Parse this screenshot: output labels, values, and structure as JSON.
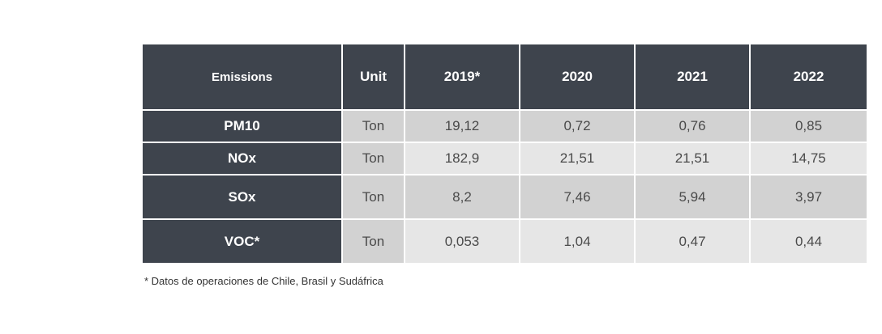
{
  "table": {
    "headers": [
      "Emissions",
      "Unit",
      "2019*",
      "2020",
      "2021",
      "2022"
    ],
    "rows": [
      {
        "label": "PM10",
        "unit": "Ton",
        "values": [
          "19,12",
          "0,72",
          "0,76",
          "0,85"
        ]
      },
      {
        "label": "NOx",
        "unit": "Ton",
        "values": [
          "182,9",
          "21,51",
          "21,51",
          "14,75"
        ]
      },
      {
        "label": "SOx",
        "unit": "Ton",
        "values": [
          "8,2",
          "7,46",
          "5,94",
          "3,97"
        ]
      },
      {
        "label": "VOC*",
        "unit": "Ton",
        "values": [
          "0,053",
          "1,04",
          "0,47",
          "0,44"
        ]
      }
    ]
  },
  "footnote": "* Datos de operaciones de Chile, Brasil y Sudáfrica",
  "colors": {
    "header_bg": "#3e444d",
    "cell_dark": "#d2d2d2",
    "cell_light": "#e6e6e6"
  }
}
